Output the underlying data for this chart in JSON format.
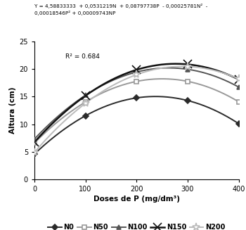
{
  "equation_line1": "Y = 4,58833333  + 0,0531219N  + 0,08797738P  - 0,00025781N²  -",
  "equation_line2": "0,00018546P² + 0,00009743NP",
  "r2": "R² = 0.684",
  "xlabel": "Doses de P (mg/dm³)",
  "ylabel": "Altura (cm)",
  "xlim": [
    0,
    400
  ],
  "ylim": [
    0,
    25
  ],
  "xticks": [
    0,
    100,
    200,
    300,
    400
  ],
  "yticks": [
    0,
    5,
    10,
    15,
    20,
    25
  ],
  "N_values": [
    0,
    50,
    100,
    150,
    200
  ],
  "P_values": [
    0,
    100,
    200,
    300,
    400
  ],
  "coeffs": {
    "a": 4.58833333,
    "b": 0.0531219,
    "c": 0.08797738,
    "d": -0.00025781,
    "e": -0.00018546,
    "f": 9.743e-05
  },
  "line_colors": [
    "#2a2a2a",
    "#999999",
    "#555555",
    "#111111",
    "#bbbbbb"
  ],
  "markers": [
    "D",
    "s",
    "^",
    "x",
    "*"
  ],
  "marker_sizes": [
    4,
    5,
    5,
    8,
    8
  ],
  "marker_face": [
    "fill",
    "white",
    "fill",
    "none",
    "white"
  ],
  "legend_labels": [
    "N0",
    "N50",
    "N100",
    "N150",
    "N200"
  ],
  "line_widths": [
    1.4,
    1.4,
    1.4,
    1.8,
    1.4
  ]
}
